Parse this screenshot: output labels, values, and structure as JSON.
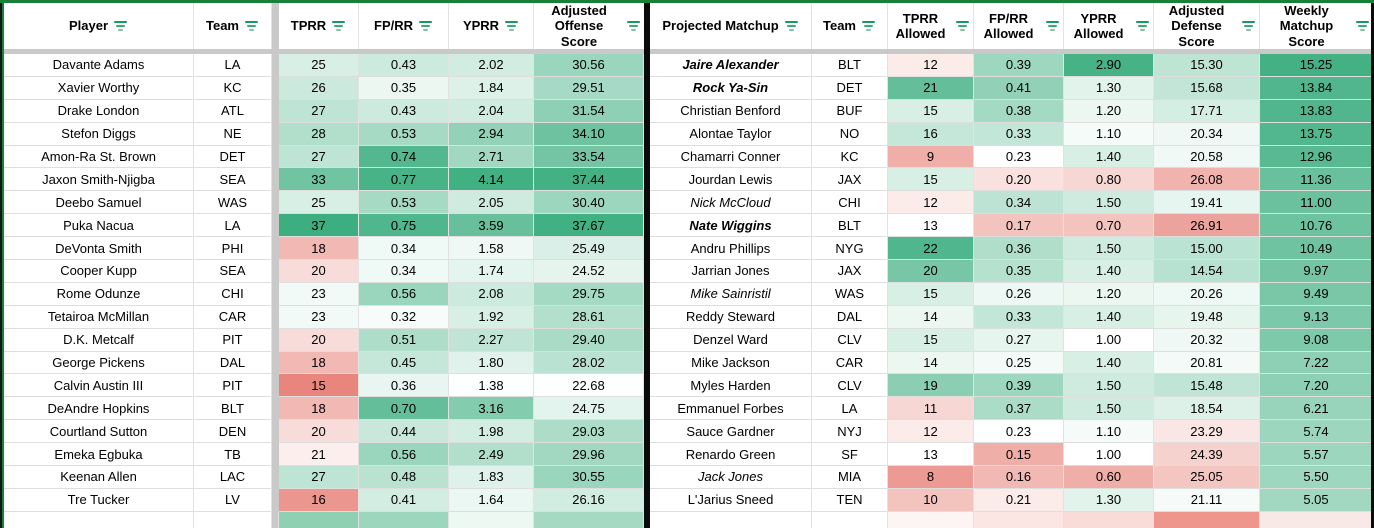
{
  "colors": {
    "green_end": "#3dae80",
    "red_end": "#e67c73",
    "table_border_green": "#188038",
    "divider_black": "#0a0a0a",
    "gutter_gray": "#c9c9c9"
  },
  "left_table": {
    "headers": [
      {
        "label": "Player"
      },
      {
        "label": "Team"
      },
      {
        "label": "TPRR"
      },
      {
        "label": "FP/RR"
      },
      {
        "label": "YPRR"
      },
      {
        "label": "Adjusted Offense Score"
      }
    ],
    "rows": [
      {
        "player": "Davante Adams",
        "team": "LA",
        "stats": [
          "25",
          "0.43",
          "2.02",
          "30.56"
        ]
      },
      {
        "player": "Xavier Worthy",
        "team": "KC",
        "stats": [
          "26",
          "0.35",
          "1.84",
          "29.51"
        ]
      },
      {
        "player": "Drake London",
        "team": "ATL",
        "stats": [
          "27",
          "0.43",
          "2.04",
          "31.54"
        ]
      },
      {
        "player": "Stefon Diggs",
        "team": "NE",
        "stats": [
          "28",
          "0.53",
          "2.94",
          "34.10"
        ]
      },
      {
        "player": "Amon-Ra St. Brown",
        "team": "DET",
        "stats": [
          "27",
          "0.74",
          "2.71",
          "33.54"
        ]
      },
      {
        "player": "Jaxon Smith-Njigba",
        "team": "SEA",
        "stats": [
          "33",
          "0.77",
          "4.14",
          "37.44"
        ]
      },
      {
        "player": "Deebo Samuel",
        "team": "WAS",
        "stats": [
          "25",
          "0.53",
          "2.05",
          "30.40"
        ]
      },
      {
        "player": "Puka Nacua",
        "team": "LA",
        "stats": [
          "37",
          "0.75",
          "3.59",
          "37.67"
        ]
      },
      {
        "player": "DeVonta Smith",
        "team": "PHI",
        "stats": [
          "18",
          "0.34",
          "1.58",
          "25.49"
        ]
      },
      {
        "player": "Cooper Kupp",
        "team": "SEA",
        "stats": [
          "20",
          "0.34",
          "1.74",
          "24.52"
        ]
      },
      {
        "player": "Rome Odunze",
        "team": "CHI",
        "stats": [
          "23",
          "0.56",
          "2.08",
          "29.75"
        ]
      },
      {
        "player": "Tetairoa McMillan",
        "team": "CAR",
        "stats": [
          "23",
          "0.32",
          "1.92",
          "28.61"
        ]
      },
      {
        "player": "D.K. Metcalf",
        "team": "PIT",
        "stats": [
          "20",
          "0.51",
          "2.27",
          "29.40"
        ]
      },
      {
        "player": "George Pickens",
        "team": "DAL",
        "stats": [
          "18",
          "0.45",
          "1.80",
          "28.02"
        ]
      },
      {
        "player": "Calvin Austin III",
        "team": "PIT",
        "stats": [
          "15",
          "0.36",
          "1.38",
          "22.68"
        ]
      },
      {
        "player": "DeAndre Hopkins",
        "team": "BLT",
        "stats": [
          "18",
          "0.70",
          "3.16",
          "24.75"
        ]
      },
      {
        "player": "Courtland Sutton",
        "team": "DEN",
        "stats": [
          "20",
          "0.44",
          "1.98",
          "29.03"
        ]
      },
      {
        "player": "Emeka Egbuka",
        "team": "TB",
        "stats": [
          "21",
          "0.56",
          "2.49",
          "29.96"
        ]
      },
      {
        "player": "Keenan Allen",
        "team": "LAC",
        "stats": [
          "27",
          "0.48",
          "1.83",
          "30.55"
        ]
      },
      {
        "player": "Tre Tucker",
        "team": "LV",
        "stats": [
          "16",
          "0.41",
          "1.64",
          "26.16"
        ]
      }
    ],
    "partial_row_colors": [
      "#ffffff",
      "#ffffff",
      "#c9c9c9",
      "#8fd0b3",
      "#9cd6bd",
      "#eef8f3",
      "#a5d9c2"
    ],
    "scales": [
      {
        "min": 14.5,
        "mid": 22,
        "max": 37
      },
      {
        "min": 0.1,
        "mid": 0.3,
        "max": 0.8
      },
      {
        "min": 0.5,
        "mid": 1.35,
        "max": 4.2
      },
      {
        "min": 15,
        "mid": 22.5,
        "max": 38
      }
    ]
  },
  "right_table": {
    "headers": [
      {
        "label": "Projected Matchup"
      },
      {
        "label": "Team"
      },
      {
        "label": "TPRR Allowed"
      },
      {
        "label": "FP/RR Allowed"
      },
      {
        "label": "YPRR Allowed"
      },
      {
        "label": "Adjusted Defense Score"
      },
      {
        "label": "Weekly Matchup Score"
      }
    ],
    "rows": [
      {
        "name": "Jaire Alexander",
        "style": "bold-italic",
        "team": "BLT",
        "stats": [
          "12",
          "0.39",
          "2.90",
          "15.30",
          "15.25"
        ]
      },
      {
        "name": "Rock Ya-Sin",
        "style": "bold-italic",
        "team": "DET",
        "stats": [
          "21",
          "0.41",
          "1.30",
          "15.68",
          "13.84"
        ]
      },
      {
        "name": "Christian Benford",
        "style": "normal",
        "team": "BUF",
        "stats": [
          "15",
          "0.38",
          "1.20",
          "17.71",
          "13.83"
        ]
      },
      {
        "name": "Alontae Taylor",
        "style": "normal",
        "team": "NO",
        "stats": [
          "16",
          "0.33",
          "1.10",
          "20.34",
          "13.75"
        ]
      },
      {
        "name": "Chamarri Conner",
        "style": "normal",
        "team": "KC",
        "stats": [
          "9",
          "0.23",
          "1.40",
          "20.58",
          "12.96"
        ]
      },
      {
        "name": "Jourdan Lewis",
        "style": "normal",
        "team": "JAX",
        "stats": [
          "15",
          "0.20",
          "0.80",
          "26.08",
          "11.36"
        ]
      },
      {
        "name": "Nick McCloud",
        "style": "italic",
        "team": "CHI",
        "stats": [
          "12",
          "0.34",
          "1.50",
          "19.41",
          "11.00"
        ]
      },
      {
        "name": "Nate Wiggins",
        "style": "bold-italic",
        "team": "BLT",
        "stats": [
          "13",
          "0.17",
          "0.70",
          "26.91",
          "10.76"
        ]
      },
      {
        "name": "Andru Phillips",
        "style": "normal",
        "team": "NYG",
        "stats": [
          "22",
          "0.36",
          "1.50",
          "15.00",
          "10.49"
        ]
      },
      {
        "name": "Jarrian Jones",
        "style": "normal",
        "team": "JAX",
        "stats": [
          "20",
          "0.35",
          "1.40",
          "14.54",
          "9.97"
        ]
      },
      {
        "name": "Mike Sainristil",
        "style": "italic",
        "team": "WAS",
        "stats": [
          "15",
          "0.26",
          "1.20",
          "20.26",
          "9.49"
        ]
      },
      {
        "name": "Reddy Steward",
        "style": "normal",
        "team": "DAL",
        "stats": [
          "14",
          "0.33",
          "1.40",
          "19.48",
          "9.13"
        ]
      },
      {
        "name": "Denzel Ward",
        "style": "normal",
        "team": "CLV",
        "stats": [
          "15",
          "0.27",
          "1.00",
          "20.32",
          "9.08"
        ]
      },
      {
        "name": "Mike Jackson",
        "style": "normal",
        "team": "CAR",
        "stats": [
          "14",
          "0.25",
          "1.40",
          "20.81",
          "7.22"
        ]
      },
      {
        "name": "Myles Harden",
        "style": "normal",
        "team": "CLV",
        "stats": [
          "19",
          "0.39",
          "1.50",
          "15.48",
          "7.20"
        ]
      },
      {
        "name": "Emmanuel Forbes",
        "style": "normal",
        "team": "LA",
        "stats": [
          "11",
          "0.37",
          "1.50",
          "18.54",
          "6.21"
        ]
      },
      {
        "name": "Sauce Gardner",
        "style": "normal",
        "team": "NYJ",
        "stats": [
          "12",
          "0.23",
          "1.10",
          "23.29",
          "5.74"
        ]
      },
      {
        "name": "Renardo Green",
        "style": "normal",
        "team": "SF",
        "stats": [
          "13",
          "0.15",
          "1.00",
          "24.39",
          "5.57"
        ]
      },
      {
        "name": "Jack Jones",
        "style": "italic",
        "team": "MIA",
        "stats": [
          "8",
          "0.16",
          "0.60",
          "25.05",
          "5.50"
        ]
      },
      {
        "name": "L'Jarius Sneed",
        "style": "normal",
        "team": "TEN",
        "stats": [
          "10",
          "0.21",
          "1.30",
          "21.11",
          "5.05"
        ]
      }
    ],
    "partial_row_colors": [
      "#ffffff",
      "#ffffff",
      "#fdf5f4",
      "#fbe6e3",
      "#f9dcd8",
      "#ee968c",
      "#f8e8e6"
    ],
    "scales": [
      {
        "min": 6.5,
        "mid": 13,
        "max": 23
      },
      {
        "min": 0.1,
        "mid": 0.23,
        "max": 0.55
      },
      {
        "min": 0.35,
        "mid": 1.0,
        "max": 3.0
      },
      {
        "min": 2,
        "mid": 22,
        "max": 29,
        "invert": true
      },
      {
        "min": -10,
        "mid": -5,
        "max": 16
      }
    ]
  }
}
